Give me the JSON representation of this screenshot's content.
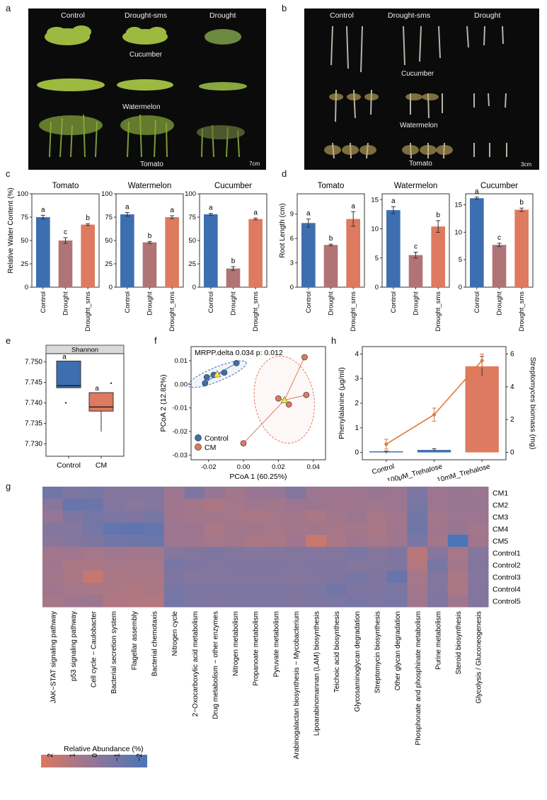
{
  "panel_labels": {
    "a": "a",
    "b": "b",
    "c": "c",
    "d": "d",
    "e": "e",
    "f": "f",
    "g": "g",
    "h": "h"
  },
  "panel_a": {
    "columns": [
      "Control",
      "Drought-sms",
      "Drought"
    ],
    "rows": [
      "Cucumber",
      "Watermelon",
      "Tomato"
    ],
    "scale_bar": "7cm"
  },
  "panel_b": {
    "columns": [
      "Control",
      "Drought-sms",
      "Drought"
    ],
    "rows": [
      "Cucumber",
      "Watermelon",
      "Tomato"
    ],
    "scale_bar": "3cm"
  },
  "colors": {
    "control": "#3d6fb0",
    "drought": "#b07476",
    "drought_sms": "#de7a5f",
    "line": "#e07a3a"
  },
  "chart_data": [
    {
      "id": "c",
      "type": "bar",
      "ylabel": "Relative Water Content (%)",
      "categories": [
        "Control",
        "Drought",
        "Drought_sms"
      ],
      "yticks": [
        0,
        25,
        50,
        75,
        100
      ],
      "ylim": [
        0,
        100
      ],
      "subplots": [
        {
          "title": "Tomato",
          "values": [
            75,
            50,
            67
          ],
          "errors": [
            2,
            3,
            1
          ],
          "letters": [
            "a",
            "c",
            "b"
          ]
        },
        {
          "title": "Watermelon",
          "values": [
            78,
            48,
            75
          ],
          "errors": [
            2,
            1,
            1.5
          ],
          "letters": [
            "a",
            "b",
            "a"
          ]
        },
        {
          "title": "Cucumber",
          "values": [
            78,
            20,
            73
          ],
          "errors": [
            1,
            2,
            1
          ],
          "letters": [
            "a",
            "b",
            "a"
          ]
        }
      ]
    },
    {
      "id": "d",
      "type": "bar",
      "ylabel": "Root Length (cm)",
      "categories": [
        "Control",
        "Drought",
        "Drought_sms"
      ],
      "subplots": [
        {
          "title": "Tomato",
          "values": [
            7.9,
            5.2,
            8.4
          ],
          "errors": [
            0.5,
            0.1,
            0.9
          ],
          "letters": [
            "a",
            "b",
            "a"
          ],
          "yticks": [
            0,
            3,
            6,
            9
          ],
          "ylim": [
            0,
            11.5
          ]
        },
        {
          "title": "Watermelon",
          "values": [
            13.2,
            5.5,
            10.4
          ],
          "errors": [
            0.6,
            0.5,
            1.0
          ],
          "letters": [
            "a",
            "c",
            "b"
          ],
          "yticks": [
            0,
            5,
            10,
            15
          ],
          "ylim": [
            0,
            16
          ]
        },
        {
          "title": "Cucumber",
          "values": [
            16.2,
            7.7,
            14.1
          ],
          "errors": [
            0.2,
            0.3,
            0.3
          ],
          "letters": [
            "a",
            "c",
            "b"
          ],
          "yticks": [
            0,
            5,
            10,
            15
          ],
          "ylim": [
            0,
            17
          ]
        }
      ]
    },
    {
      "id": "e",
      "type": "box",
      "title": "Shannon",
      "categories": [
        "Control",
        "CM"
      ],
      "yticks": [
        7.73,
        7.735,
        7.74,
        7.745,
        7.75
      ],
      "ylim": [
        7.727,
        7.752
      ],
      "boxes": [
        {
          "q1": 7.7437,
          "median": 7.7442,
          "q3": 7.7502,
          "whisker_low": 7.7437,
          "whisker_high": 7.7502,
          "outliers": [
            7.74
          ],
          "letter": "a"
        },
        {
          "q1": 7.738,
          "median": 7.739,
          "q3": 7.7425,
          "whisker_low": 7.733,
          "whisker_high": 7.7425,
          "outliers": [
            7.7448
          ],
          "letter": "a"
        }
      ]
    },
    {
      "id": "f",
      "type": "scatter",
      "annotation": "MRPP.delta 0.034 p: 0.012",
      "xlabel": "PCoA 1 (60.25%)",
      "ylabel": "PCoA 2 (12.82%)",
      "xticks": [
        -0.02,
        0.0,
        0.02,
        0.04
      ],
      "yticks": [
        -0.03,
        -0.02,
        -0.01,
        0.0,
        0.01
      ],
      "xlim": [
        -0.03,
        0.047
      ],
      "ylim": [
        -0.032,
        0.016
      ],
      "series": [
        {
          "name": "Control",
          "points": [
            [
              -0.022,
              0.0005
            ],
            [
              -0.021,
              0.003
            ],
            [
              -0.017,
              0.004
            ],
            [
              -0.011,
              0.005
            ],
            [
              -0.004,
              0.009
            ]
          ],
          "centroid": [
            -0.015,
            0.0043
          ]
        },
        {
          "name": "CM",
          "points": [
            [
              0.0,
              -0.025
            ],
            [
              0.02,
              -0.006
            ],
            [
              0.026,
              -0.0085
            ],
            [
              0.035,
              0.0115
            ],
            [
              0.036,
              -0.0045
            ]
          ],
          "centroid": [
            0.0235,
            -0.0067
          ]
        }
      ]
    },
    {
      "id": "h",
      "type": "bar+line",
      "ylabel": "Phenylalanine (μg/ml)",
      "ylabel_right": "Streptomyces biomass (mg)",
      "categories": [
        "Control",
        "100μM_Trehalose",
        "10mM_Trehalose"
      ],
      "yticks": [
        0,
        1,
        2,
        3,
        4
      ],
      "ylim": [
        -0.3,
        4.3
      ],
      "yticks_right": [
        0,
        2,
        4,
        6
      ],
      "bar_values": [
        0.0,
        0.1,
        3.5
      ],
      "bar_errors": [
        0.05,
        0.05,
        0.4
      ],
      "line_values_right": [
        0.5,
        2.3,
        5.6
      ],
      "line_errors_right": [
        0.3,
        0.4,
        0.4
      ]
    },
    {
      "id": "g",
      "type": "heatmap",
      "legend_title": "Relative Abundance (%)",
      "legend_ticks": [
        "2",
        "1",
        "0",
        "−1",
        "−2"
      ],
      "rows": [
        "CM1",
        "CM2",
        "CM3",
        "CM4",
        "CM5",
        "Control1",
        "Control2",
        "Control3",
        "Control4",
        "Control5"
      ],
      "columns": [
        "JAK−STAT signaling pathway",
        "p53 signaling pathway",
        "Cell cycle − Caulobacter",
        "Bacterial secretion system",
        "Flagellar assembly",
        "Bacterial chemotaxis",
        "Nitrogen cycle",
        "2−Oxocarboxylic acid metabolism",
        "Drug metabolism − other enzymes",
        "Nitrogen metabolism",
        "Propanoate metabolism",
        "Pyruvate metabolism",
        "Arabinogalactan biosynthesis − Mycobacterium",
        "Lipoarabinomannan (LAM) biosynthesis",
        "Teichoic acid biosynthesis",
        "Glycosaminoglycan degradation",
        "Streptomycin biosynthesis",
        "Other glycan degradation",
        "Phosphonate and phosphinate metabolism",
        "Purine metabolism",
        "Steroid biosynthesis",
        "Glycolysis / Gluconeogenesis"
      ],
      "values": [
        [
          -1.0,
          -0.6,
          -0.8,
          -0.4,
          -0.5,
          -0.5,
          0.3,
          -0.6,
          0.1,
          0.5,
          0.2,
          0.1,
          -0.5,
          0.3,
          0.4,
          0.3,
          0.2,
          0.3,
          -0.6,
          0.3,
          0.2,
          0.3
        ],
        [
          -0.3,
          -1.3,
          -1.2,
          -0.5,
          -0.3,
          -0.4,
          0.4,
          0.5,
          0.8,
          0.6,
          0.4,
          0.5,
          0.3,
          0.3,
          0.4,
          0.4,
          0.4,
          0.3,
          -0.8,
          0.3,
          0.2,
          0.2
        ],
        [
          0.1,
          -0.6,
          -0.9,
          -0.7,
          -0.6,
          -0.8,
          0.4,
          0.5,
          0.5,
          0.6,
          0.7,
          0.6,
          0.5,
          0.7,
          0.5,
          0.3,
          0.6,
          0.5,
          -1.0,
          0.5,
          0.3,
          0.3
        ],
        [
          -0.4,
          -0.4,
          -0.9,
          -1.5,
          -1.6,
          -1.4,
          0.3,
          0.3,
          0.7,
          0.5,
          0.5,
          0.6,
          0.5,
          0.5,
          0.6,
          0.5,
          0.7,
          0.4,
          -1.1,
          0.4,
          0.2,
          0.5
        ],
        [
          -0.2,
          -0.5,
          -0.6,
          -1.0,
          -1.1,
          -1.2,
          0.3,
          0.4,
          0.6,
          0.5,
          0.8,
          0.7,
          0.4,
          1.7,
          0.8,
          0.4,
          0.6,
          0.4,
          -0.8,
          0.5,
          -2.3,
          0.4
        ],
        [
          0.5,
          0.4,
          0.6,
          0.4,
          0.5,
          0.5,
          -0.4,
          -0.5,
          -0.6,
          -0.5,
          -0.4,
          -0.4,
          -0.5,
          -0.5,
          -0.5,
          -0.7,
          -0.4,
          -0.6,
          1.2,
          -0.4,
          0.6,
          -0.4
        ],
        [
          0.4,
          0.7,
          0.8,
          0.6,
          0.6,
          0.6,
          -0.8,
          -0.6,
          -0.5,
          -0.6,
          -0.6,
          -0.6,
          -0.5,
          -0.6,
          -0.6,
          -0.4,
          -0.5,
          -0.6,
          1.0,
          -0.8,
          0.5,
          -0.5
        ],
        [
          0.5,
          0.8,
          1.6,
          0.8,
          0.7,
          0.7,
          -0.6,
          -0.4,
          -0.5,
          -0.5,
          -0.5,
          -0.5,
          -0.4,
          -0.5,
          -0.6,
          -0.8,
          -0.6,
          -1.3,
          0.6,
          -0.5,
          0.7,
          -0.4
        ],
        [
          0.4,
          0.6,
          0.7,
          0.8,
          0.9,
          0.8,
          -0.8,
          -0.7,
          -0.6,
          -0.7,
          -0.6,
          -0.6,
          -0.6,
          -0.7,
          -1.0,
          -0.6,
          -0.6,
          -0.7,
          0.5,
          -0.5,
          0.8,
          -0.5
        ],
        [
          0.6,
          0.4,
          0.3,
          0.9,
          1.0,
          1.0,
          -0.9,
          -0.7,
          -0.6,
          -0.6,
          -0.7,
          -0.7,
          -0.5,
          -0.6,
          -0.7,
          -0.8,
          -0.7,
          -0.8,
          0.4,
          -0.6,
          0.4,
          -0.5
        ]
      ]
    }
  ]
}
